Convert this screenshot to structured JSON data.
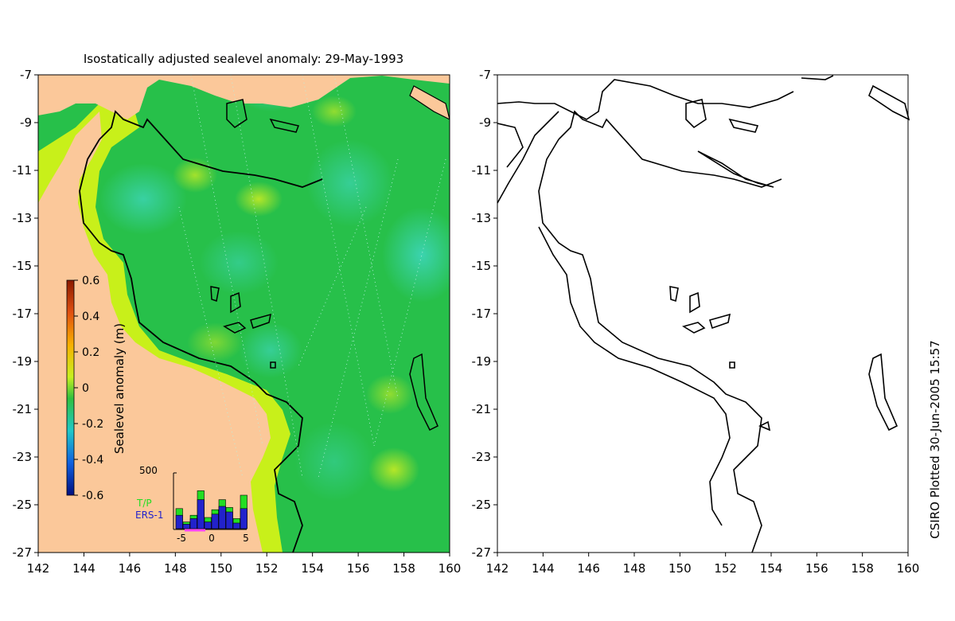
{
  "title": "Isostatically adjusted sealevel anomaly: 29-May-1993",
  "credit": "CSIRO Plotted 30-Jun-2005 15:57",
  "left_map": {
    "lon_ticks": [
      "142",
      "144",
      "146",
      "148",
      "150",
      "152",
      "154",
      "156",
      "158",
      "160"
    ],
    "lat_ticks": [
      "-7",
      "-9",
      "-11",
      "-13",
      "-15",
      "-17",
      "-19",
      "-21",
      "-23",
      "-25",
      "-27"
    ]
  },
  "right_map": {
    "lon_ticks": [
      "142",
      "144",
      "146",
      "148",
      "150",
      "152",
      "154",
      "156",
      "158",
      "160"
    ],
    "lat_ticks": [
      "-7",
      "-9",
      "-11",
      "-13",
      "-15",
      "-17",
      "-19",
      "-21",
      "-23",
      "-25",
      "-27"
    ]
  },
  "colorbar": {
    "label": "Sealevel anomaly (m)",
    "ticks": [
      "0.6",
      "0.4",
      "0.2",
      "0",
      "-0.2",
      "-0.4",
      "-0.6"
    ]
  },
  "histogram": {
    "y_max_label": "500",
    "x_ticks": [
      "-5",
      "0",
      "5"
    ],
    "legend_tp": "T/P",
    "legend_ers": "ERS-1",
    "bars": [
      {
        "tp": 180,
        "ers": 120
      },
      {
        "tp": 60,
        "ers": 40
      },
      {
        "tp": 120,
        "ers": 90
      },
      {
        "tp": 340,
        "ers": 260
      },
      {
        "tp": 100,
        "ers": 60
      },
      {
        "tp": 170,
        "ers": 130
      },
      {
        "tp": 260,
        "ers": 200
      },
      {
        "tp": 190,
        "ers": 150
      },
      {
        "tp": 90,
        "ers": 50
      },
      {
        "tp": 300,
        "ers": 180
      }
    ]
  },
  "colors": {
    "land": "#fbc89a",
    "ocean_base": "#27c04a",
    "coast_band": "#c8f01a",
    "tp": "#22dd22",
    "ers": "#2222cc",
    "axis_mark": "#ff44ff"
  }
}
